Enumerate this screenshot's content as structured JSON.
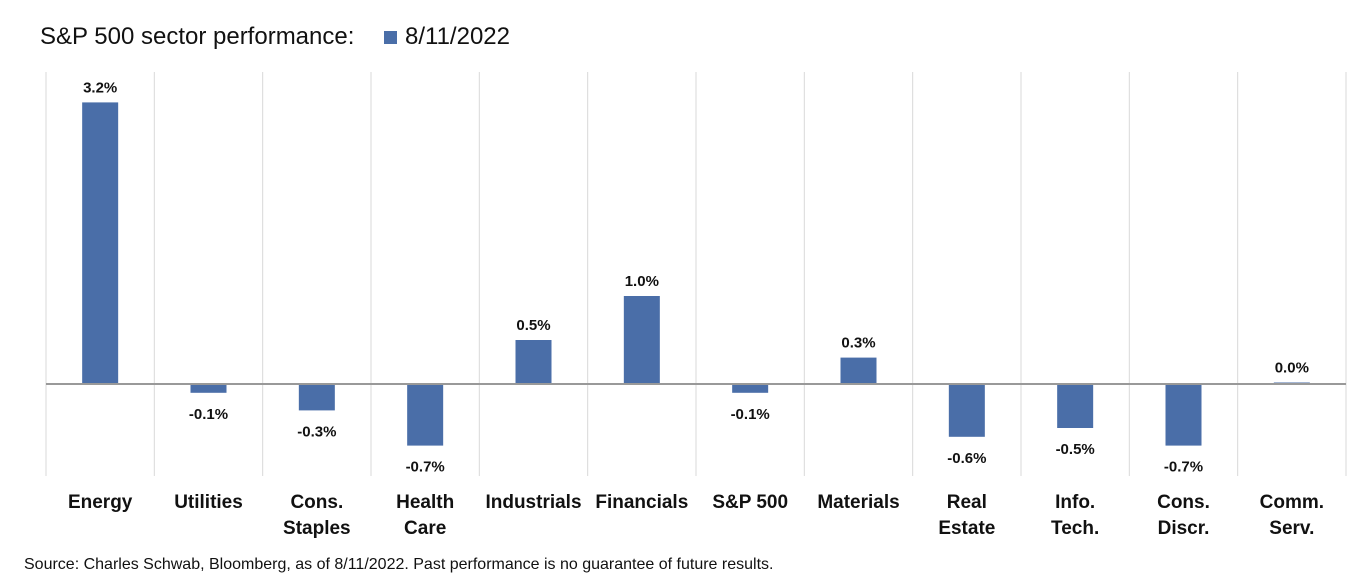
{
  "chart_data": {
    "type": "bar",
    "title": "S&P 500 sector performance:",
    "legend": {
      "position": "top",
      "entries": [
        "8/11/2022"
      ]
    },
    "categories": [
      [
        "Energy"
      ],
      [
        "Utilities"
      ],
      [
        "Cons.",
        "Staples"
      ],
      [
        "Health",
        "Care"
      ],
      [
        "Industrials"
      ],
      [
        "Financials"
      ],
      [
        "S&P 500"
      ],
      [
        "Materials"
      ],
      [
        "Real",
        "Estate"
      ],
      [
        "Info.",
        "Tech."
      ],
      [
        "Cons.",
        "Discr."
      ],
      [
        "Comm.",
        "Serv."
      ]
    ],
    "series": [
      {
        "name": "8/11/2022",
        "color": "#4a6ea8",
        "values": [
          3.2,
          -0.1,
          -0.3,
          -0.7,
          0.5,
          1.0,
          -0.1,
          0.3,
          -0.6,
          -0.5,
          -0.7,
          0.0
        ],
        "data_labels": [
          "3.2%",
          "-0.1%",
          "-0.3%",
          "-0.7%",
          "0.5%",
          "1.0%",
          "-0.1%",
          "0.3%",
          "-0.6%",
          "-0.5%",
          "-0.7%",
          "0.0%"
        ]
      }
    ],
    "ylim": [
      -1.0,
      3.5
    ],
    "grid": "vertical separators between categories",
    "zero_line_color": "#999999",
    "separator_color": "#d9d9d9"
  },
  "footer": {
    "source": "Source: Charles Schwab, Bloomberg, as of 8/11/2022.  Past performance is no guarantee of future results."
  }
}
